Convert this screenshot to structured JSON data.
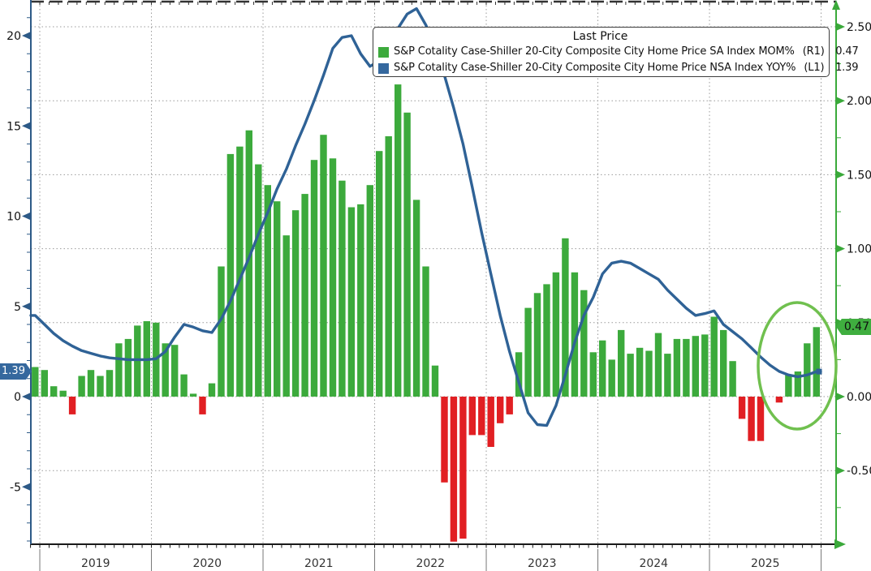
{
  "colors": {
    "bar_positive": "#3caa3c",
    "bar_negative": "#e11f23",
    "line": "#2f6296",
    "left_axis": "#2d5a87",
    "right_axis": "#3aa93a",
    "grid": "#9a9a9a",
    "frame": "#333333",
    "year_text": "#333333",
    "axis_text": "#111111",
    "ellipse": "#70c04f",
    "badge_left_bg": "#35689e",
    "badge_right_bg": "#3fae3f"
  },
  "badges": {
    "left": {
      "value": "1.39"
    },
    "right": {
      "value": "0.47"
    }
  },
  "chart_data": {
    "type": "combo-bar-line",
    "legend": {
      "title": "Last Price",
      "entries": [
        {
          "name": "S&P Cotality Case-Shiller 20-City Composite City Home Price SA Index MOM%",
          "scale": "(R1)",
          "value": "0.47",
          "color": "#3caa3c"
        },
        {
          "name": "S&P Cotality Case-Shiller 20-City Composite City Home Price NSA Index YOY%",
          "scale": "(L1)",
          "value": "1.39",
          "color": "#35689e"
        }
      ]
    },
    "x_axis": {
      "year_labels": [
        "2019",
        "2020",
        "2021",
        "2022",
        "2023",
        "2024",
        "2025"
      ]
    },
    "left_axis": {
      "ticks": [
        "20",
        "15",
        "10",
        "5",
        "0",
        "-5"
      ],
      "last_price": 1.39
    },
    "right_axis": {
      "ticks": [
        "2.50",
        "2.00",
        "1.50",
        "1.00",
        "0.50",
        "0.00",
        "-0.50"
      ],
      "last_price": 0.47
    },
    "months": [
      "2018-12",
      "2019-01",
      "2019-02",
      "2019-03",
      "2019-04",
      "2019-05",
      "2019-06",
      "2019-07",
      "2019-08",
      "2019-09",
      "2019-10",
      "2019-11",
      "2019-12",
      "2020-01",
      "2020-02",
      "2020-03",
      "2020-04",
      "2020-05",
      "2020-06",
      "2020-07",
      "2020-08",
      "2020-09",
      "2020-10",
      "2020-11",
      "2020-12",
      "2021-01",
      "2021-02",
      "2021-03",
      "2021-04",
      "2021-05",
      "2021-06",
      "2021-07",
      "2021-08",
      "2021-09",
      "2021-10",
      "2021-11",
      "2021-12",
      "2022-01",
      "2022-02",
      "2022-03",
      "2022-04",
      "2022-05",
      "2022-06",
      "2022-07",
      "2022-08",
      "2022-09",
      "2022-10",
      "2022-11",
      "2022-12",
      "2023-01",
      "2023-02",
      "2023-03",
      "2023-04",
      "2023-05",
      "2023-06",
      "2023-07",
      "2023-08",
      "2023-09",
      "2023-10",
      "2023-11",
      "2023-12",
      "2024-01",
      "2024-02",
      "2024-03",
      "2024-04",
      "2024-05",
      "2024-06",
      "2024-07",
      "2024-08",
      "2024-09",
      "2024-10",
      "2024-11",
      "2024-12",
      "2025-01",
      "2025-02",
      "2025-03",
      "2025-04",
      "2025-05",
      "2025-06",
      "2025-07",
      "2025-08",
      "2025-09",
      "2025-10",
      "2025-11",
      "2025-12"
    ],
    "series": [
      {
        "name": "SA Index MOM%",
        "axis": "R1",
        "type": "bar",
        "values": [
          0.2,
          0.18,
          0.07,
          0.04,
          -0.12,
          0.14,
          0.18,
          0.14,
          0.18,
          0.36,
          0.39,
          0.48,
          0.51,
          0.5,
          0.36,
          0.35,
          0.15,
          0.02,
          -0.12,
          0.09,
          0.88,
          1.64,
          1.69,
          1.8,
          1.57,
          1.43,
          1.32,
          1.09,
          1.26,
          1.37,
          1.6,
          1.77,
          1.61,
          1.46,
          1.28,
          1.3,
          1.43,
          1.66,
          1.76,
          2.11,
          1.92,
          1.33,
          0.88,
          0.21,
          -0.58,
          -0.98,
          -0.96,
          -0.26,
          -0.26,
          -0.34,
          -0.18,
          -0.12,
          0.3,
          0.6,
          0.7,
          0.76,
          0.84,
          1.07,
          0.84,
          0.72,
          0.3,
          0.38,
          0.25,
          0.45,
          0.29,
          0.33,
          0.31,
          0.43,
          0.29,
          0.39,
          0.39,
          0.41,
          0.42,
          0.54,
          0.45,
          0.24,
          -0.15,
          -0.3,
          -0.3,
          0.0,
          -0.04,
          0.15,
          0.17,
          0.36,
          0.47
        ]
      },
      {
        "name": "NSA Index YOY%",
        "axis": "L1",
        "type": "line",
        "values": [
          4.5,
          4.0,
          3.5,
          3.1,
          2.8,
          2.55,
          2.4,
          2.25,
          2.15,
          2.1,
          2.05,
          2.05,
          2.05,
          2.1,
          2.5,
          3.3,
          4.0,
          3.85,
          3.65,
          3.55,
          4.3,
          5.3,
          6.5,
          7.7,
          9.0,
          10.2,
          11.5,
          12.6,
          13.9,
          15.1,
          16.4,
          17.8,
          19.3,
          19.9,
          20.0,
          19.0,
          18.3,
          18.6,
          19.4,
          20.4,
          21.2,
          21.5,
          20.6,
          19.4,
          17.8,
          16.0,
          14.0,
          11.6,
          9.1,
          6.8,
          4.5,
          2.5,
          0.8,
          -0.9,
          -1.55,
          -1.6,
          -0.5,
          1.2,
          3.0,
          4.5,
          5.5,
          6.8,
          7.4,
          7.5,
          7.4,
          7.1,
          6.8,
          6.5,
          5.9,
          5.4,
          4.9,
          4.5,
          4.6,
          4.75,
          4.0,
          3.6,
          3.2,
          2.7,
          2.2,
          1.75,
          1.4,
          1.2,
          1.1,
          1.2,
          1.39
        ]
      }
    ],
    "annotations": [
      {
        "type": "ellipse",
        "meaning": "highlight of recent home-price rebound"
      }
    ]
  }
}
